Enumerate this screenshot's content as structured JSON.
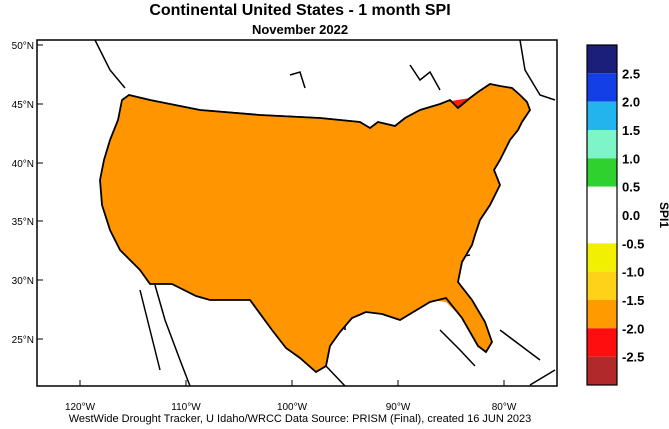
{
  "title": "Continental United States - 1 month SPI",
  "subtitle": "November 2022",
  "credit": "WestWide Drought Tracker, U Idaho/WRCC Data Source: PRISM (Final), created 16 JUN 2023",
  "lat_labels": [
    "50°N",
    "45°N",
    "40°N",
    "35°N",
    "30°N",
    "25°N"
  ],
  "lon_labels": [
    "120°W",
    "110°W",
    "100°W",
    "90°W",
    "80°W"
  ],
  "colorbar": {
    "title": "SPI1",
    "labels": [
      "2.5",
      "2.0",
      "1.5",
      "1.0",
      "0.5",
      "0.0",
      "-0.5",
      "-1.0",
      "-1.5",
      "-2.0",
      "-2.5"
    ],
    "colors": [
      "#1c1f7a",
      "#1240e6",
      "#23b4ee",
      "#7df5c8",
      "#2fd12f",
      "#ffffff",
      "#ffffff",
      "#f0f000",
      "#ffd21a",
      "#ff9a00",
      "#fe0e0e",
      "#b1292a"
    ]
  },
  "map_colors": {
    "severe_red": "#ff1a0a",
    "dark_red": "#b22a2a",
    "orange": "#ff9500",
    "light_orange": "#ffb400",
    "yellow_orange": "#ffd200",
    "yellow_green": "#c8f000"
  }
}
